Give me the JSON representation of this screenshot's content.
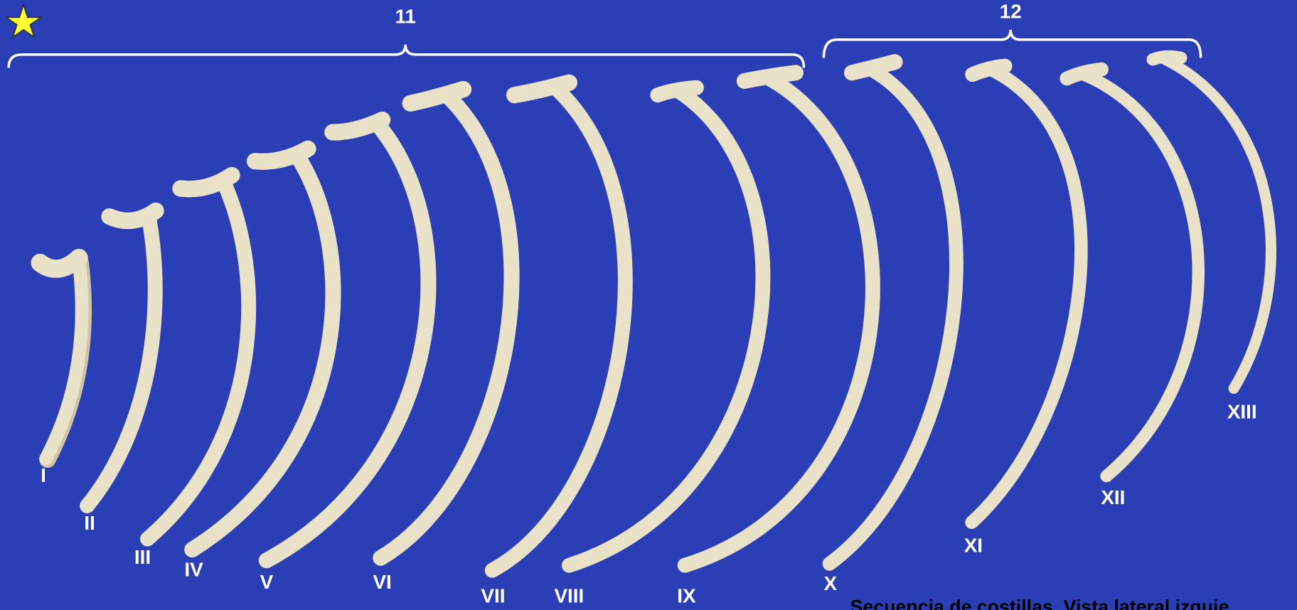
{
  "brackets": [
    {
      "label": "11"
    },
    {
      "label": "12"
    }
  ],
  "ribs": [
    {
      "label": "I"
    },
    {
      "label": "II"
    },
    {
      "label": "III"
    },
    {
      "label": "IV"
    },
    {
      "label": "V"
    },
    {
      "label": "VI"
    },
    {
      "label": "VII"
    },
    {
      "label": "VIII"
    },
    {
      "label": "IX"
    },
    {
      "label": "X"
    },
    {
      "label": "XI"
    },
    {
      "label": "XII"
    },
    {
      "label": "XIII"
    }
  ],
  "caption": "Secuencia de costillas. Vista lateral izquie"
}
